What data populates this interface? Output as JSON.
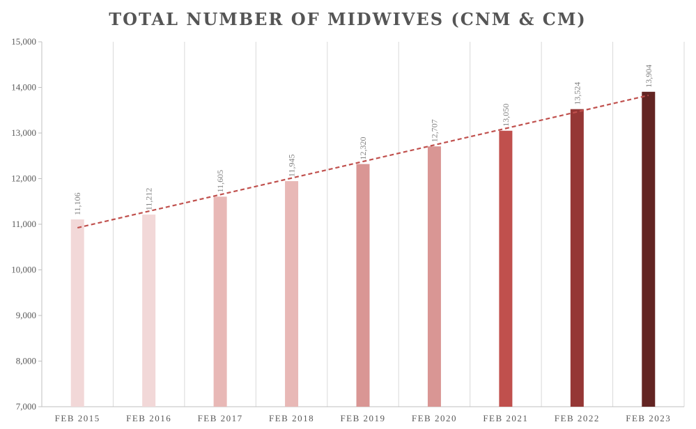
{
  "chart_data": {
    "type": "bar",
    "title": "TOTAL NUMBER OF MIDWIVES (CNM & CM)",
    "xlabel": "",
    "ylabel": "",
    "categories": [
      "FEB 2015",
      "FEB 2016",
      "FEB 2017",
      "FEB 2018",
      "FEB 2019",
      "FEB 2020",
      "FEB 2021",
      "FEB 2022",
      "FEB 2023"
    ],
    "values": [
      11106,
      11212,
      11605,
      11945,
      12320,
      12707,
      13050,
      13524,
      13904
    ],
    "data_labels": [
      "11,106",
      "11,212",
      "11,605",
      "11,945",
      "12,320",
      "12,707",
      "13,050",
      "13,524",
      "13,904"
    ],
    "bar_colors": [
      "#f2d8d8",
      "#f2d8d8",
      "#e8b8b6",
      "#e8b8b6",
      "#d99694",
      "#d99694",
      "#c0504d",
      "#953735",
      "#632523"
    ],
    "ylim": [
      7000,
      15000
    ],
    "yticks": [
      7000,
      8000,
      9000,
      10000,
      11000,
      12000,
      13000,
      14000,
      15000
    ],
    "ytick_labels": [
      "7,000",
      "8,000",
      "9,000",
      "10,000",
      "11,000",
      "12,000",
      "13,000",
      "14,000",
      "15,000"
    ],
    "trendline": {
      "type": "linear",
      "style": "dashed",
      "color": "#c0504d"
    },
    "grid": {
      "vertical_category_separators": true,
      "horizontal": false
    },
    "legend": "none"
  }
}
